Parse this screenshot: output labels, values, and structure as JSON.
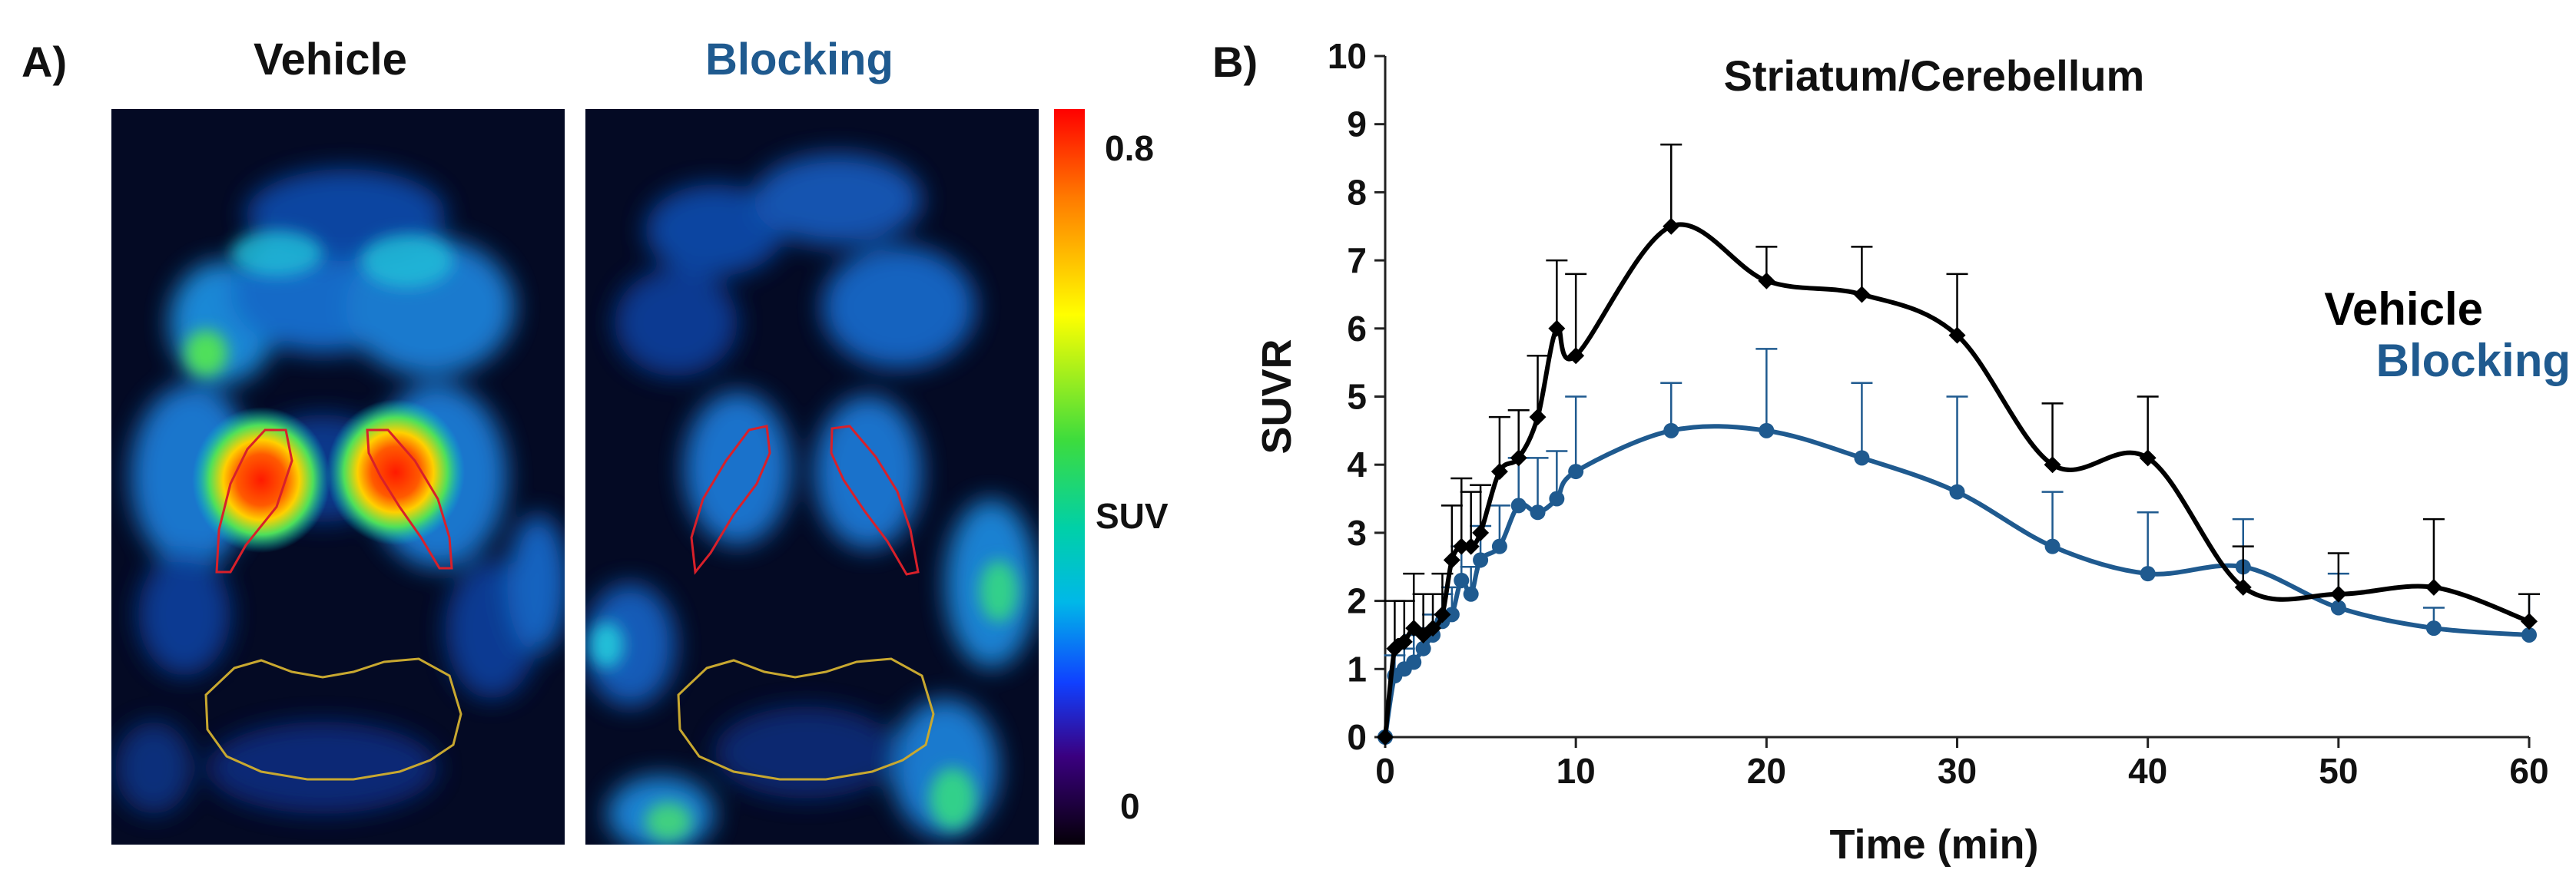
{
  "panel_a": {
    "letter": "A)",
    "vehicle_title": "Vehicle",
    "blocking_title": "Blocking",
    "colorbar": {
      "max_label": "0.8",
      "mid_label": "SUV",
      "min_label": "0"
    },
    "colors": {
      "vehicle_title": "#111111",
      "blocking_title": "#1f5a8f"
    }
  },
  "panel_b": {
    "letter": "B)"
  },
  "chart_data": {
    "type": "line",
    "title": "Striatum/Cerebellum",
    "xlabel": "Time (min)",
    "ylabel": "SUVR",
    "xlim": [
      0,
      60
    ],
    "ylim": [
      0,
      10
    ],
    "xticks": [
      0,
      10,
      20,
      30,
      40,
      50,
      60
    ],
    "yticks": [
      0,
      1,
      2,
      3,
      4,
      5,
      6,
      7,
      8,
      9,
      10
    ],
    "grid": false,
    "legend_position": "right",
    "series": [
      {
        "name": "Vehicle",
        "color": "#000000",
        "marker": "diamond",
        "x": [
          0,
          0.5,
          1,
          1.5,
          2,
          2.5,
          3,
          3.5,
          4,
          4.5,
          5,
          6,
          7,
          8,
          9,
          10,
          15,
          20,
          25,
          30,
          35,
          40,
          45,
          50,
          55,
          60
        ],
        "y": [
          0,
          1.3,
          1.4,
          1.6,
          1.5,
          1.6,
          1.8,
          2.6,
          2.8,
          2.8,
          3.0,
          3.9,
          4.1,
          4.7,
          6.0,
          5.6,
          7.5,
          6.7,
          6.5,
          5.9,
          4.0,
          4.1,
          2.2,
          2.1,
          2.2,
          1.7
        ],
        "err": [
          0,
          0.7,
          0.6,
          0.8,
          0.6,
          0.5,
          0.6,
          0.8,
          1.0,
          0.8,
          0.7,
          0.8,
          0.7,
          0.9,
          1.0,
          1.2,
          1.2,
          0.5,
          0.7,
          0.9,
          0.9,
          0.9,
          0.6,
          0.6,
          1.0,
          0.4
        ]
      },
      {
        "name": "Blocking",
        "color": "#1f5a8f",
        "marker": "circle",
        "x": [
          0,
          0.5,
          1,
          1.5,
          2,
          2.5,
          3,
          3.5,
          4,
          4.5,
          5,
          6,
          7,
          8,
          9,
          10,
          15,
          20,
          25,
          30,
          35,
          40,
          45,
          50,
          55,
          60
        ],
        "y": [
          0,
          0.9,
          1.0,
          1.1,
          1.3,
          1.5,
          1.7,
          1.8,
          2.3,
          2.1,
          2.6,
          2.8,
          3.4,
          3.3,
          3.5,
          3.9,
          4.5,
          4.5,
          4.1,
          3.6,
          2.8,
          2.4,
          2.5,
          1.9,
          1.6,
          1.5
        ],
        "err": [
          0,
          0.3,
          0.3,
          0.4,
          0.3,
          0.3,
          0.4,
          0.4,
          0.5,
          0.4,
          0.5,
          0.6,
          0.7,
          0.8,
          0.7,
          1.1,
          0.7,
          1.2,
          1.1,
          1.4,
          0.8,
          0.9,
          0.7,
          0.5,
          0.3,
          0.6
        ]
      }
    ]
  }
}
